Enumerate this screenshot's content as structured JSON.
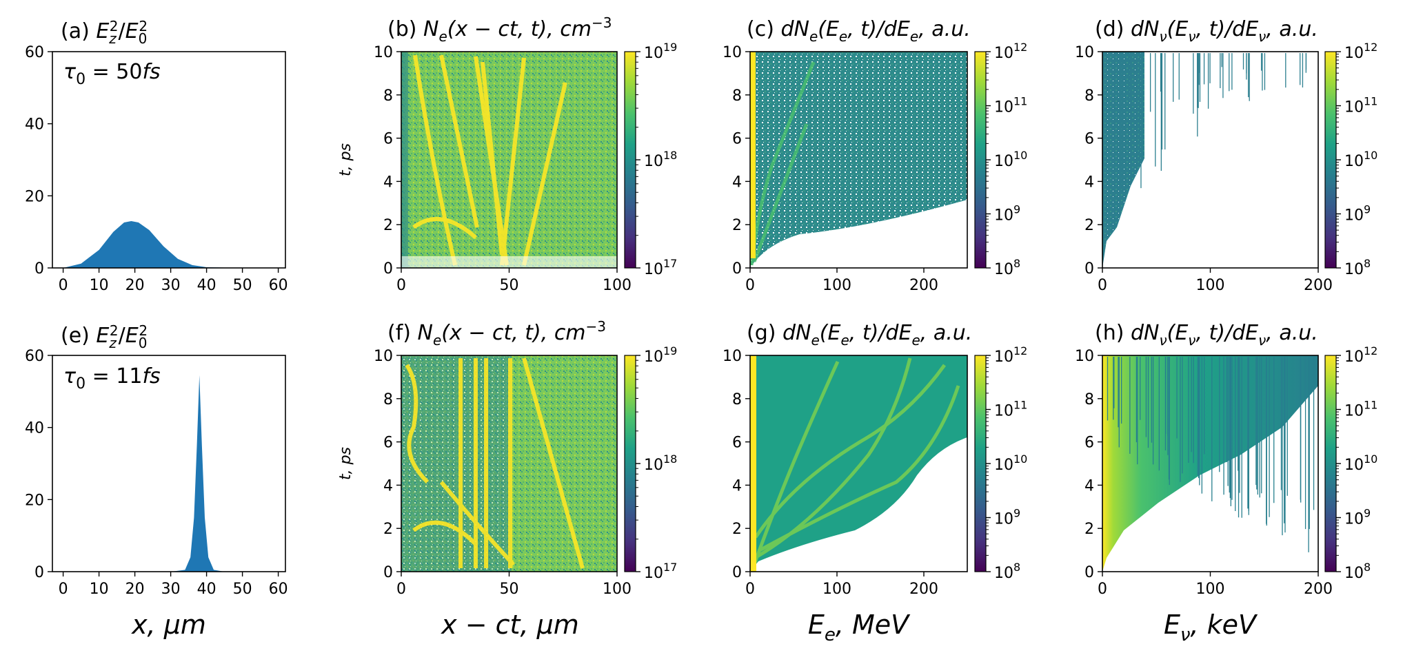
{
  "colors": {
    "pulse": "#1f77b4",
    "viridis": [
      "#440154",
      "#46327e",
      "#365c8d",
      "#277f8e",
      "#1fa187",
      "#4ac16d",
      "#a0da39",
      "#fde725"
    ]
  },
  "chart_data": [
    {
      "id": "a",
      "type": "area",
      "title": "(a) E_z^2/E_0^2",
      "xlabel": "",
      "ylabel": "",
      "annotation": "τ0 = 50fs",
      "xlim": [
        -3,
        62
      ],
      "ylim": [
        0,
        60
      ],
      "xticks": [
        "0",
        "10",
        "20",
        "30",
        "40",
        "50",
        "60"
      ],
      "yticks": [
        "0",
        "20",
        "40",
        "60"
      ],
      "x": [
        0,
        5,
        10,
        14,
        17,
        19,
        21,
        24,
        28,
        32,
        36,
        40,
        50,
        60
      ],
      "y": [
        0,
        1.2,
        5,
        10,
        12.6,
        13,
        12.6,
        10.5,
        6,
        2.5,
        0.8,
        0.2,
        0,
        0
      ]
    },
    {
      "id": "b",
      "type": "heatmap",
      "title": "(b) N_e(x−ct, t), cm^-3",
      "xlabel": "",
      "ylabel": "t, ps",
      "xlim": [
        0,
        100
      ],
      "ylim": [
        0,
        10
      ],
      "xticks": [
        "0",
        "50",
        "100"
      ],
      "yticks": [
        "0",
        "2",
        "4",
        "6",
        "8",
        "10"
      ],
      "colorbar": {
        "scale": "log",
        "ticks": [
          "10^17",
          "10^18",
          "10^19"
        ]
      }
    },
    {
      "id": "c",
      "type": "heatmap",
      "title": "(c) dN_e(E_e, t)/dE_e, a.u.",
      "xlabel": "",
      "ylabel": "",
      "xlim": [
        0,
        250
      ],
      "ylim": [
        0,
        10
      ],
      "xticks": [
        "0",
        "100",
        "200"
      ],
      "yticks": [
        "0",
        "2",
        "4",
        "6",
        "8",
        "10"
      ],
      "colorbar": {
        "scale": "log",
        "ticks": [
          "10^8",
          "10^9",
          "10^10",
          "10^11",
          "10^12"
        ]
      }
    },
    {
      "id": "d",
      "type": "heatmap",
      "title": "(d) dN_ν(E_ν, t)/dE_ν, a.u.",
      "xlabel": "",
      "ylabel": "",
      "xlim": [
        0,
        200
      ],
      "ylim": [
        0,
        10
      ],
      "xticks": [
        "0",
        "100",
        "200"
      ],
      "yticks": [
        "0",
        "2",
        "4",
        "6",
        "8",
        "10"
      ],
      "colorbar": {
        "scale": "log",
        "ticks": [
          "10^8",
          "10^9",
          "10^10",
          "10^11",
          "10^12"
        ]
      }
    },
    {
      "id": "e",
      "type": "area",
      "title": "(e) E_z^2/E_0^2",
      "xlabel": "x, μm",
      "ylabel": "",
      "annotation": "τ0 = 11fs",
      "xlim": [
        -3,
        62
      ],
      "ylim": [
        0,
        60
      ],
      "xticks": [
        "0",
        "10",
        "20",
        "30",
        "40",
        "50",
        "60"
      ],
      "yticks": [
        "0",
        "20",
        "40",
        "60"
      ],
      "x": [
        0,
        30,
        34,
        35.5,
        36.5,
        37.3,
        38,
        38.7,
        39.5,
        40.5,
        42,
        45,
        60
      ],
      "y": [
        0,
        0,
        0.5,
        4,
        15,
        35,
        54.5,
        35,
        15,
        4,
        0.5,
        0,
        0
      ]
    },
    {
      "id": "f",
      "type": "heatmap",
      "title": "(f) N_e(x−ct, t), cm^-3",
      "xlabel": "x − ct, μm",
      "ylabel": "t, ps",
      "xlim": [
        0,
        100
      ],
      "ylim": [
        0,
        10
      ],
      "xticks": [
        "0",
        "50",
        "100"
      ],
      "yticks": [
        "0",
        "2",
        "4",
        "6",
        "8",
        "10"
      ],
      "colorbar": {
        "scale": "log",
        "ticks": [
          "10^17",
          "10^18",
          "10^19"
        ]
      }
    },
    {
      "id": "g",
      "type": "heatmap",
      "title": "(g) dN_e(E_e, t)/dE_e, a.u.",
      "xlabel": "E_e, MeV",
      "ylabel": "",
      "xlim": [
        0,
        250
      ],
      "ylim": [
        0,
        10
      ],
      "xticks": [
        "0",
        "100",
        "200"
      ],
      "yticks": [
        "0",
        "2",
        "4",
        "6",
        "8",
        "10"
      ],
      "colorbar": {
        "scale": "log",
        "ticks": [
          "10^8",
          "10^9",
          "10^10",
          "10^11",
          "10^12"
        ]
      }
    },
    {
      "id": "h",
      "type": "heatmap",
      "title": "(h) dN_ν(E_ν, t)/dE_ν, a.u.",
      "xlabel": "E_ν, keV",
      "ylabel": "",
      "xlim": [
        0,
        200
      ],
      "ylim": [
        0,
        10
      ],
      "xticks": [
        "0",
        "100",
        "200"
      ],
      "yticks": [
        "0",
        "2",
        "4",
        "6",
        "8",
        "10"
      ],
      "colorbar": {
        "scale": "log",
        "ticks": [
          "10^8",
          "10^9",
          "10^10",
          "10^11",
          "10^12"
        ]
      }
    }
  ]
}
